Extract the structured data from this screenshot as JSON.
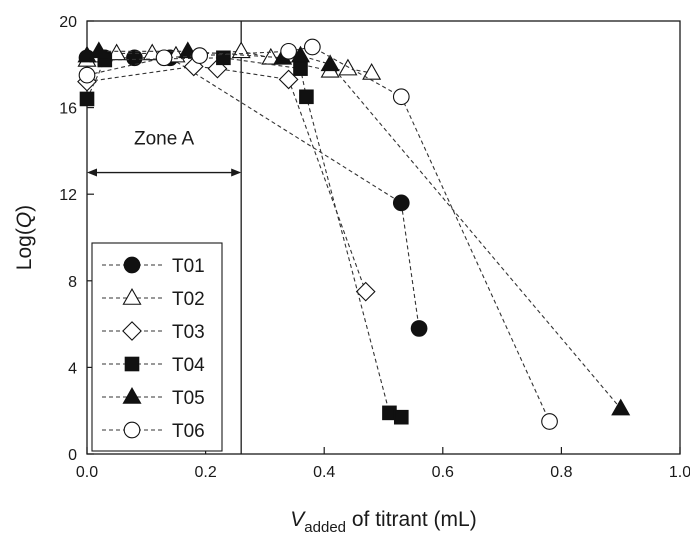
{
  "chart_data": {
    "type": "scatter",
    "xlabel_italic": "V",
    "xlabel_sub": "added",
    "xlabel_rest": " of titrant (mL)",
    "ylabel_pre": "Log(",
    "ylabel_italic": "Q",
    "ylabel_post": ")",
    "xlim": [
      0.0,
      1.0
    ],
    "ylim": [
      0,
      20
    ],
    "x_ticks": [
      0.0,
      0.2,
      0.4,
      0.6,
      0.8,
      1.0
    ],
    "x_tick_labels": [
      "0.0",
      "0.2",
      "0.4",
      "0.6",
      "0.8",
      "1.0"
    ],
    "y_ticks": [
      0,
      4,
      8,
      12,
      16,
      20
    ],
    "y_tick_labels": [
      "0",
      "4",
      "8",
      "12",
      "16",
      "20"
    ],
    "grid": false,
    "legend_position": "bottom-left",
    "annotations": [
      {
        "type": "vline",
        "x": 0.26,
        "y_from": 0,
        "y_to": 20
      },
      {
        "type": "double-arrow",
        "x_from": 0.0,
        "x_to": 0.26,
        "y": 13.0
      },
      {
        "type": "text",
        "text": "Zone A",
        "x": 0.13,
        "y": 14.3
      }
    ],
    "series": [
      {
        "name": "T01",
        "marker": "circle",
        "filled": true,
        "points": [
          [
            0.0,
            18.3
          ],
          [
            0.03,
            18.3
          ],
          [
            0.08,
            18.3
          ],
          [
            0.14,
            18.3
          ],
          [
            0.53,
            11.6
          ],
          [
            0.56,
            5.8
          ]
        ]
      },
      {
        "name": "T02",
        "marker": "triangle",
        "filled": false,
        "points": [
          [
            0.0,
            18.2
          ],
          [
            0.02,
            18.4
          ],
          [
            0.05,
            18.5
          ],
          [
            0.11,
            18.5
          ],
          [
            0.15,
            18.4
          ],
          [
            0.26,
            18.6
          ],
          [
            0.31,
            18.3
          ],
          [
            0.41,
            17.7
          ],
          [
            0.44,
            17.8
          ],
          [
            0.48,
            17.6
          ]
        ]
      },
      {
        "name": "T03",
        "marker": "diamond",
        "filled": false,
        "points": [
          [
            0.0,
            17.2
          ],
          [
            0.18,
            17.9
          ],
          [
            0.22,
            17.8
          ],
          [
            0.34,
            17.3
          ],
          [
            0.47,
            7.5
          ]
        ]
      },
      {
        "name": "T04",
        "marker": "square",
        "filled": true,
        "points": [
          [
            0.0,
            16.4
          ],
          [
            0.03,
            18.2
          ],
          [
            0.23,
            18.3
          ],
          [
            0.36,
            17.8
          ],
          [
            0.37,
            16.5
          ],
          [
            0.51,
            1.9
          ],
          [
            0.53,
            1.7
          ]
        ]
      },
      {
        "name": "T05",
        "marker": "triangle",
        "filled": true,
        "points": [
          [
            0.0,
            18.4
          ],
          [
            0.02,
            18.6
          ],
          [
            0.17,
            18.6
          ],
          [
            0.33,
            18.3
          ],
          [
            0.36,
            18.4
          ],
          [
            0.41,
            18.0
          ],
          [
            0.9,
            2.1
          ]
        ]
      },
      {
        "name": "T06",
        "marker": "circle",
        "filled": false,
        "points": [
          [
            0.0,
            17.5
          ],
          [
            0.13,
            18.3
          ],
          [
            0.19,
            18.4
          ],
          [
            0.34,
            18.6
          ],
          [
            0.38,
            18.8
          ],
          [
            0.53,
            16.5
          ],
          [
            0.78,
            1.5
          ]
        ]
      }
    ]
  }
}
